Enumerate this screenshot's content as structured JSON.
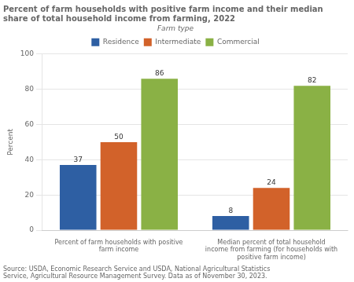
{
  "chart_data": {
    "type": "bar",
    "title": [
      "Percent of farm households with positive farm income and their median",
      "share of total household income from farming, 2022"
    ],
    "ylabel": "Percent",
    "categories": [
      "Percent of farm households with positive\nfarm income",
      "Median percent of total household\nincome from farming (for households with\npositive farm income)"
    ],
    "series": [
      {
        "name": "Residence",
        "color": "#2e5fa3",
        "values": [
          37,
          8
        ]
      },
      {
        "name": "Intermediate",
        "color": "#d2622a",
        "values": [
          50,
          24
        ]
      },
      {
        "name": "Commercial",
        "color": "#8ab145",
        "values": [
          86,
          82
        ]
      }
    ],
    "legend": "top",
    "legend_title": "Farm type",
    "ylim": [
      0,
      100
    ],
    "yticks": [
      0,
      20,
      40,
      60,
      80,
      100
    ],
    "grid": true,
    "data_labels": true,
    "source": "Source: USDA, Economic Research Service and USDA, National Agricultural Statistics\nService, Agricultural Resource Management Survey. Data as of November 30, 2023."
  }
}
